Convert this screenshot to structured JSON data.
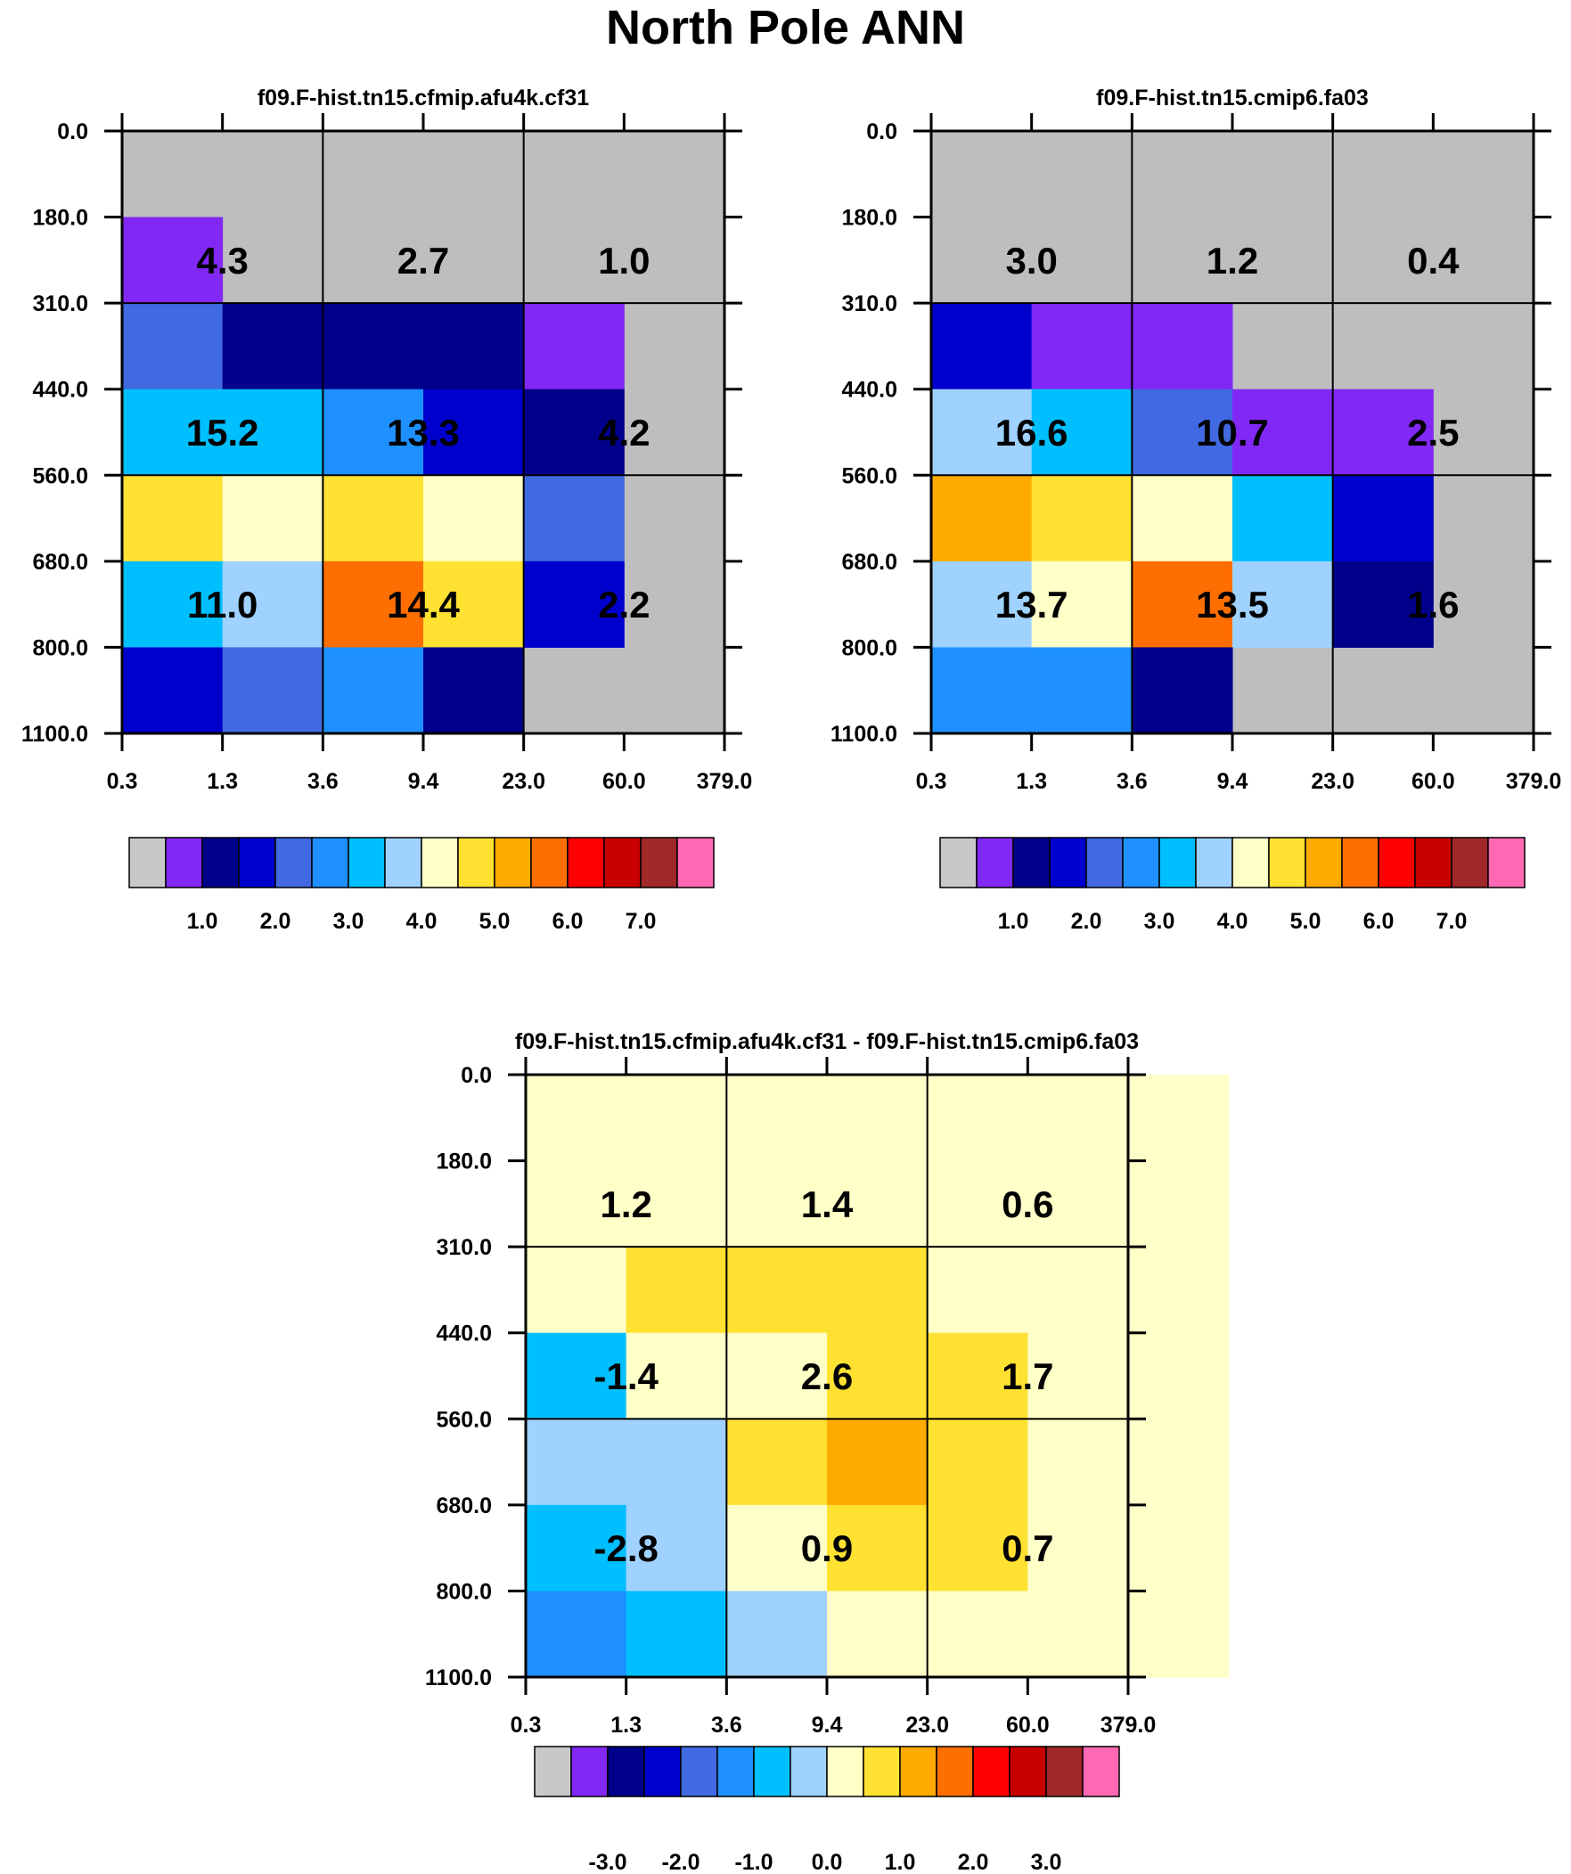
{
  "title": "North Pole ANN",
  "chart_data": [
    {
      "type": "heatmap",
      "title": "f09.F-hist.tn15.cfmip.afu4k.cf31",
      "x_ticks": [
        "0.3",
        "1.3",
        "3.6",
        "9.4",
        "23.0",
        "60.0",
        "379.0"
      ],
      "y_ticks": [
        "0.0",
        "180.0",
        "310.0",
        "440.0",
        "560.0",
        "680.0",
        "800.0",
        "1100.0"
      ],
      "cells": [
        [
          null,
          null,
          null,
          null,
          null,
          null,
          null
        ],
        [
          1,
          null,
          null,
          null,
          null,
          null,
          null
        ],
        [
          4,
          2,
          2,
          2,
          1,
          null,
          null
        ],
        [
          6,
          6,
          5,
          3,
          2,
          null,
          null
        ],
        [
          9,
          8,
          9,
          8,
          4,
          null,
          null
        ],
        [
          6,
          7,
          11,
          9,
          3,
          null,
          null
        ],
        [
          3,
          4,
          5,
          2,
          null,
          null,
          null
        ]
      ],
      "annotations": [
        {
          "row": 0,
          "col": 0,
          "text": "4.3"
        },
        {
          "row": 0,
          "col": 1,
          "text": "2.7"
        },
        {
          "row": 0,
          "col": 2,
          "text": "1.0"
        },
        {
          "row": 1,
          "col": 0,
          "text": "15.2"
        },
        {
          "row": 1,
          "col": 1,
          "text": "13.3"
        },
        {
          "row": 1,
          "col": 2,
          "text": "4.2"
        },
        {
          "row": 2,
          "col": 0,
          "text": "11.0"
        },
        {
          "row": 2,
          "col": 1,
          "text": "14.4"
        },
        {
          "row": 2,
          "col": 2,
          "text": "2.2"
        }
      ],
      "colorbar": {
        "labels": [
          "1.0",
          "2.0",
          "3.0",
          "4.0",
          "5.0",
          "6.0",
          "7.0"
        ]
      }
    },
    {
      "type": "heatmap",
      "title": "f09.F-hist.tn15.cmip6.fa03",
      "x_ticks": [
        "0.3",
        "1.3",
        "3.6",
        "9.4",
        "23.0",
        "60.0",
        "379.0"
      ],
      "y_ticks": [
        "0.0",
        "180.0",
        "310.0",
        "440.0",
        "560.0",
        "680.0",
        "800.0",
        "1100.0"
      ],
      "cells": [
        [
          null,
          null,
          null,
          null,
          null,
          null,
          null
        ],
        [
          null,
          null,
          null,
          null,
          null,
          null,
          null
        ],
        [
          3,
          1,
          1,
          null,
          null,
          null,
          null
        ],
        [
          7,
          6,
          4,
          1,
          1,
          null,
          null
        ],
        [
          10,
          9,
          8,
          6,
          3,
          null,
          null
        ],
        [
          7,
          8,
          11,
          7,
          2,
          null,
          null
        ],
        [
          5,
          5,
          2,
          null,
          null,
          null,
          null
        ]
      ],
      "annotations": [
        {
          "row": 0,
          "col": 0,
          "text": "3.0"
        },
        {
          "row": 0,
          "col": 1,
          "text": "1.2"
        },
        {
          "row": 0,
          "col": 2,
          "text": "0.4"
        },
        {
          "row": 1,
          "col": 0,
          "text": "16.6"
        },
        {
          "row": 1,
          "col": 1,
          "text": "10.7"
        },
        {
          "row": 1,
          "col": 2,
          "text": "2.5"
        },
        {
          "row": 2,
          "col": 0,
          "text": "13.7"
        },
        {
          "row": 2,
          "col": 1,
          "text": "13.5"
        },
        {
          "row": 2,
          "col": 2,
          "text": "1.6"
        }
      ],
      "colorbar": {
        "labels": [
          "1.0",
          "2.0",
          "3.0",
          "4.0",
          "5.0",
          "6.0",
          "7.0"
        ]
      }
    },
    {
      "type": "heatmap",
      "title": "f09.F-hist.tn15.cfmip.afu4k.cf31 - f09.F-hist.tn15.cmip6.fa03",
      "x_ticks": [
        "0.3",
        "1.3",
        "3.6",
        "9.4",
        "23.0",
        "60.0",
        "379.0"
      ],
      "y_ticks": [
        "0.0",
        "180.0",
        "310.0",
        "440.0",
        "560.0",
        "680.0",
        "800.0",
        "1100.0"
      ],
      "cells": [
        [
          8,
          8,
          8,
          8,
          8,
          8,
          8
        ],
        [
          8,
          8,
          8,
          8,
          8,
          8,
          8
        ],
        [
          8,
          9,
          9,
          9,
          8,
          8,
          8
        ],
        [
          6,
          8,
          8,
          9,
          9,
          8,
          8
        ],
        [
          7,
          7,
          9,
          10,
          9,
          8,
          8
        ],
        [
          6,
          7,
          8,
          9,
          9,
          8,
          8
        ],
        [
          5,
          6,
          7,
          8,
          8,
          8,
          8
        ]
      ],
      "annotations": [
        {
          "row": 0,
          "col": 0,
          "text": "1.2"
        },
        {
          "row": 0,
          "col": 1,
          "text": "1.4"
        },
        {
          "row": 0,
          "col": 2,
          "text": "0.6"
        },
        {
          "row": 1,
          "col": 0,
          "text": "-1.4"
        },
        {
          "row": 1,
          "col": 1,
          "text": "2.6"
        },
        {
          "row": 1,
          "col": 2,
          "text": "1.7"
        },
        {
          "row": 2,
          "col": 0,
          "text": "-2.8"
        },
        {
          "row": 2,
          "col": 1,
          "text": "0.9"
        },
        {
          "row": 2,
          "col": 2,
          "text": "0.7"
        }
      ],
      "colorbar": {
        "labels": [
          "-3.0",
          "-2.0",
          "-1.0",
          "0.0",
          "1.0",
          "2.0",
          "3.0"
        ]
      }
    }
  ],
  "palette": {
    "missing": "#bebebe",
    "colors": [
      "#c8c8c8",
      "#8128f5",
      "#00008b",
      "#0000cd",
      "#4169e1",
      "#1e90ff",
      "#00bfff",
      "#a0d2ff",
      "#ffffc8",
      "#ffe132",
      "#ffaa00",
      "#ff6e00",
      "#ff0000",
      "#c80000",
      "#a02828",
      "#ff69b4"
    ]
  }
}
